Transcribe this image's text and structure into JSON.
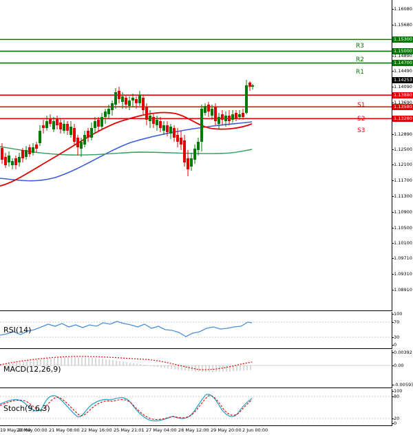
{
  "main": {
    "price_ticks": [
      "1.16080",
      "1.15680",
      "1.15300",
      "1.15000",
      "1.14890",
      "1.14700",
      "1.14490",
      "1.14253",
      "1.14090",
      "1.13880",
      "1.13690",
      "1.13580",
      "1.13280",
      "1.12890",
      "1.12500",
      "1.12100",
      "1.11700",
      "1.11300",
      "1.10900",
      "1.10500",
      "1.10100",
      "1.09710",
      "1.09310",
      "1.08910"
    ],
    "levels": [
      {
        "name": "R3",
        "price": "1.15300",
        "color": "#007a00"
      },
      {
        "name": "R2",
        "price": "1.15000",
        "color": "#007a00"
      },
      {
        "name": "R1",
        "price": "1.14700",
        "color": "#007a00"
      },
      {
        "name": "S1",
        "price": "1.13880",
        "color": "#e00000"
      },
      {
        "name": "S2",
        "price": "1.13580",
        "color": "#e00000"
      },
      {
        "name": "S3",
        "price": "1.13280",
        "color": "#e00000"
      }
    ],
    "current_price": "1.14253"
  },
  "rsi": {
    "label": "RSI(14)",
    "ticks": [
      "100",
      "70",
      "30",
      "0"
    ]
  },
  "macd": {
    "label": "MACD(12,26,9)",
    "ticks": [
      "0.00392",
      "0.00",
      "-0.00593"
    ]
  },
  "stoch": {
    "label": "Stoch(9,6,3)",
    "ticks": [
      "100",
      "80",
      "20",
      "0"
    ]
  },
  "time_labels": [
    "19 May 20:00",
    "20 May 00:00",
    "21 May 08:00",
    "22 May 16:00",
    "25 May 21:01",
    "27 May 04:00",
    "28 May 12:00",
    "29 May 20:00",
    "2 Jun 00:00"
  ],
  "colors": {
    "bull": "#007a00",
    "bear": "#e00000",
    "ma_fast": "#e00000",
    "ma_mid": "#3b5bdb",
    "ma_slow": "#2e9e5a",
    "rsi": "#4a90d9",
    "macd_hist": "#b0b0b0",
    "macd_signal": "#e00000",
    "stoch_main": "#2aa6c8",
    "stoch_signal": "#e00000"
  }
}
